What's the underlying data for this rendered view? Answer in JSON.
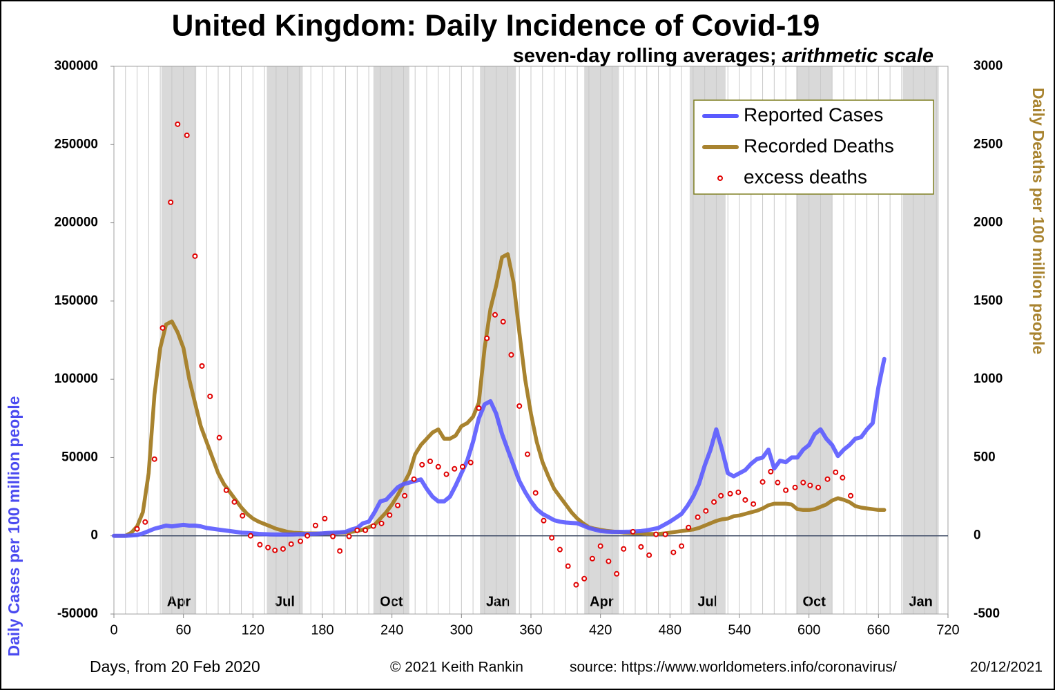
{
  "chart_data": {
    "type": "line",
    "title": "United Kingdom: Daily Incidence of Covid-19",
    "subtitle": "seven-day rolling averages; ",
    "subtitle_emphasis": "arithmetic scale",
    "y_label": "Daily Cases per 100 million people",
    "y2_label": "Daily Deaths per 100 million people",
    "x_label": "Days, from 20 Feb 2020",
    "credit": "© 2021  Keith Rankin",
    "source": "source: https://www.worldometers.info/coronavirus/",
    "date": "20/12/2021",
    "xlim": [
      0,
      720
    ],
    "xticks": [
      0,
      60,
      120,
      180,
      240,
      300,
      360,
      420,
      480,
      540,
      600,
      660,
      720
    ],
    "minor_grid_step": 10,
    "ylim": [
      -50000,
      300000
    ],
    "yticks": [
      -50000,
      0,
      50000,
      100000,
      150000,
      200000,
      250000,
      300000
    ],
    "y2lim": [
      -500,
      3000
    ],
    "y2ticks": [
      -500,
      0,
      500,
      1000,
      1500,
      2000,
      2500,
      3000
    ],
    "legend": "top-right",
    "bands": [
      {
        "label": "Apr",
        "start": 41,
        "end": 71
      },
      {
        "label": "Jul",
        "start": 132,
        "end": 163
      },
      {
        "label": "Oct",
        "start": 224,
        "end": 255
      },
      {
        "label": "Jan",
        "start": 316,
        "end": 347
      },
      {
        "label": "Apr",
        "start": 406,
        "end": 436
      },
      {
        "label": "Jul",
        "start": 497,
        "end": 528
      },
      {
        "label": "Oct",
        "start": 589,
        "end": 620
      },
      {
        "label": "Jan",
        "start": 681,
        "end": 712
      }
    ],
    "x": [
      0,
      5,
      10,
      15,
      20,
      25,
      30,
      35,
      40,
      45,
      50,
      55,
      60,
      65,
      70,
      75,
      80,
      85,
      90,
      95,
      100,
      105,
      110,
      115,
      120,
      125,
      130,
      135,
      140,
      145,
      150,
      155,
      160,
      165,
      170,
      175,
      180,
      185,
      190,
      195,
      200,
      205,
      210,
      215,
      220,
      225,
      230,
      235,
      240,
      245,
      250,
      255,
      260,
      265,
      270,
      275,
      280,
      285,
      290,
      295,
      300,
      305,
      310,
      315,
      320,
      325,
      330,
      335,
      340,
      345,
      350,
      355,
      360,
      365,
      370,
      375,
      380,
      385,
      390,
      395,
      400,
      405,
      410,
      415,
      420,
      425,
      430,
      435,
      440,
      445,
      450,
      455,
      460,
      465,
      470,
      475,
      480,
      485,
      490,
      495,
      500,
      505,
      510,
      515,
      520,
      525,
      530,
      535,
      540,
      545,
      550,
      555,
      560,
      565,
      570,
      575,
      580,
      585,
      590,
      595,
      600,
      605,
      610,
      615,
      620,
      625,
      630,
      635,
      640,
      645,
      650,
      655,
      660,
      665
    ],
    "series": [
      {
        "name": "Reported Cases",
        "color": "#5a5aff",
        "axis": "y",
        "values": [
          0,
          0,
          0,
          200,
          500,
          1500,
          3000,
          4500,
          5500,
          6500,
          6000,
          6500,
          7000,
          6500,
          6500,
          6000,
          5000,
          4500,
          4000,
          3500,
          3000,
          2500,
          2000,
          1800,
          1500,
          1200,
          1000,
          900,
          800,
          800,
          800,
          900,
          1000,
          1100,
          1200,
          1300,
          1500,
          1800,
          2000,
          2200,
          2500,
          4000,
          5000,
          8000,
          9000,
          15000,
          22000,
          23000,
          27000,
          31000,
          33000,
          34000,
          35000,
          36000,
          30000,
          25000,
          22000,
          22000,
          25000,
          32000,
          40000,
          48000,
          60000,
          75000,
          84000,
          86000,
          78000,
          65000,
          55000,
          45000,
          35000,
          28000,
          22000,
          17000,
          14000,
          12000,
          10000,
          9000,
          8500,
          8200,
          8000,
          6500,
          5000,
          4000,
          3000,
          2700,
          2500,
          2500,
          2500,
          2600,
          2800,
          3000,
          3500,
          4200,
          5000,
          7000,
          9000,
          11500,
          14000,
          19000,
          25000,
          33000,
          45000,
          55000,
          68000,
          55000,
          40000,
          38000,
          40000,
          42000,
          46000,
          49000,
          50000,
          55000,
          43000,
          48000,
          47000,
          50000,
          50000,
          55000,
          58000,
          65000,
          68000,
          62000,
          58000,
          51000,
          55000,
          58000,
          62000,
          63000,
          68000,
          72000,
          95000,
          113000
        ]
      },
      {
        "name": "Recorded Deaths",
        "color": "#a8832f",
        "axis": "y2",
        "values": [
          0,
          0,
          0,
          20,
          60,
          150,
          400,
          900,
          1200,
          1350,
          1370,
          1300,
          1200,
          1000,
          850,
          700,
          600,
          500,
          400,
          330,
          280,
          230,
          180,
          140,
          110,
          90,
          75,
          60,
          45,
          35,
          25,
          20,
          18,
          15,
          15,
          15,
          15,
          15,
          15,
          18,
          20,
          25,
          30,
          40,
          55,
          70,
          110,
          150,
          200,
          260,
          330,
          400,
          520,
          580,
          620,
          660,
          680,
          620,
          620,
          640,
          700,
          720,
          760,
          850,
          1200,
          1450,
          1600,
          1780,
          1800,
          1620,
          1300,
          1000,
          780,
          600,
          470,
          380,
          300,
          250,
          200,
          150,
          110,
          80,
          55,
          45,
          38,
          32,
          28,
          24,
          20,
          18,
          15,
          15,
          12,
          12,
          12,
          15,
          20,
          25,
          30,
          35,
          40,
          50,
          65,
          80,
          95,
          105,
          110,
          125,
          130,
          140,
          150,
          160,
          175,
          195,
          205,
          205,
          205,
          200,
          170,
          165,
          165,
          170,
          185,
          200,
          225,
          240,
          230,
          215,
          190,
          180,
          175,
          170,
          165,
          165
        ]
      },
      {
        "name": "excess deaths",
        "color": "#e00000",
        "axis": "y2",
        "type": "scatter",
        "x": [
          20,
          27,
          35,
          42,
          49,
          55,
          63,
          70,
          76,
          83,
          91,
          97,
          104,
          111,
          118,
          126,
          133,
          139,
          146,
          153,
          161,
          167,
          174,
          182,
          189,
          195,
          203,
          210,
          217,
          224,
          231,
          238,
          245,
          251,
          259,
          266,
          273,
          280,
          287,
          294,
          301,
          308,
          315,
          322,
          329,
          336,
          343,
          350,
          357,
          364,
          371,
          378,
          385,
          392,
          399,
          406,
          413,
          420,
          427,
          434,
          440,
          448,
          455,
          462,
          468,
          476,
          483,
          490,
          496,
          504,
          511,
          518,
          524,
          532,
          539,
          545,
          552,
          560,
          567,
          573,
          580,
          588,
          595,
          601,
          608,
          616,
          623,
          629,
          636
        ],
        "values": [
          44,
          88,
          490,
          1328,
          2131,
          2630,
          2559,
          1787,
          1085,
          891,
          627,
          291,
          216,
          128,
          0,
          -57,
          -75,
          -93,
          -84,
          -53,
          -35,
          0,
          66,
          110,
          -4,
          -97,
          -4,
          35,
          35,
          62,
          79,
          132,
          194,
          256,
          362,
          454,
          476,
          441,
          393,
          428,
          441,
          468,
          816,
          1262,
          1412,
          1368,
          1156,
          829,
          521,
          274,
          97,
          -13,
          -88,
          -194,
          -313,
          -274,
          -146,
          -66,
          -163,
          -243,
          -84,
          26,
          -71,
          -124,
          9,
          9,
          -106,
          -66,
          53,
          119,
          159,
          216,
          256,
          269,
          278,
          229,
          203,
          344,
          410,
          340,
          291,
          309,
          340,
          322,
          309,
          362,
          406,
          371,
          256
        ]
      }
    ]
  }
}
